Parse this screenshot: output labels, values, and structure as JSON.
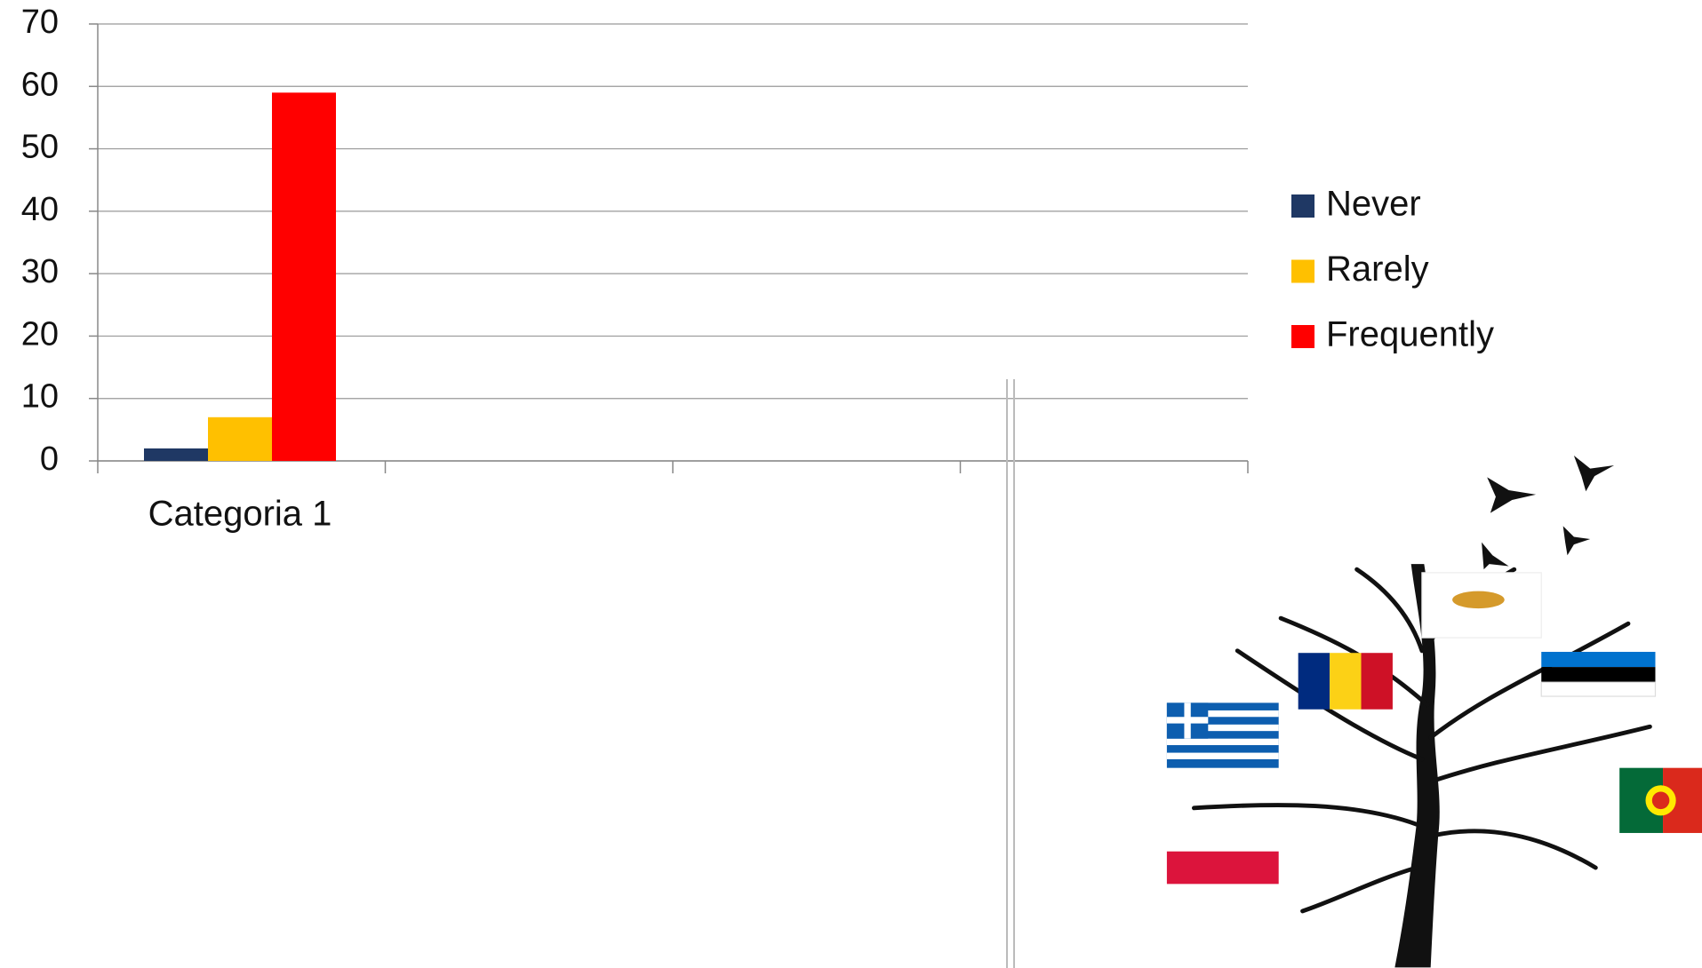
{
  "chart_data": {
    "type": "bar",
    "categories": [
      "Categoria 1",
      null,
      null,
      null
    ],
    "series": [
      {
        "name": "Never",
        "color": "#1f3864",
        "values": [
          2,
          null,
          null,
          null
        ]
      },
      {
        "name": "Rarely",
        "color": "#ffc000",
        "values": [
          7,
          null,
          null,
          null
        ]
      },
      {
        "name": "Frequently",
        "color": "#ff0000",
        "values": [
          59,
          null,
          null,
          null
        ]
      }
    ],
    "ylim": [
      0,
      70
    ],
    "yticks": [
      0,
      10,
      20,
      30,
      40,
      50,
      60,
      70
    ],
    "grid": true,
    "legend": "right"
  }
}
